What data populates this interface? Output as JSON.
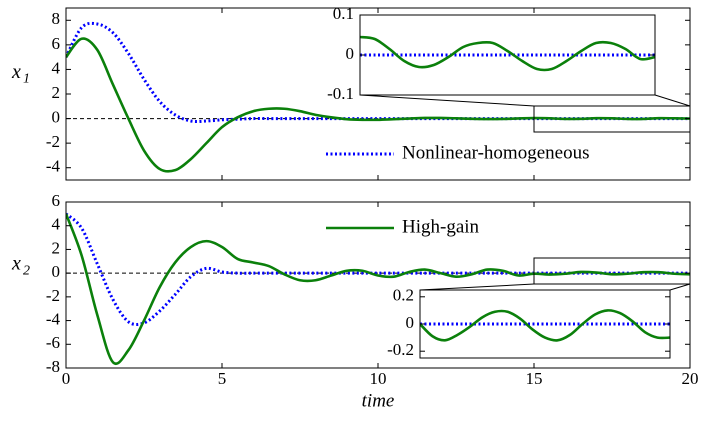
{
  "chart_data": [
    {
      "type": "line",
      "ylabel": "x",
      "ylabel_subscript": "1",
      "x": [
        0,
        0.5,
        1,
        1.5,
        2,
        2.5,
        3,
        3.5,
        4,
        4.5,
        5,
        5.5,
        6,
        6.5,
        7,
        7.5,
        8,
        8.5,
        9,
        9.5,
        10,
        10.5,
        11,
        11.5,
        12,
        12.5,
        13,
        13.5,
        14,
        14.5,
        15,
        15.5,
        16,
        16.5,
        17,
        17.5,
        18,
        18.5,
        19,
        19.5,
        20
      ],
      "xlim": [
        0,
        20
      ],
      "xticks": [
        0,
        5,
        10,
        15,
        20
      ],
      "xtick_labels": false,
      "ylim": [
        -5,
        9
      ],
      "yticks": [
        -4,
        -2,
        0,
        2,
        4,
        6,
        8
      ],
      "hlines": [
        0
      ],
      "legend": "lower center",
      "series": [
        {
          "name": "Nonlinear-homogeneous",
          "color": "#0000ff",
          "style": "dotted",
          "values": [
            5,
            7.4,
            7.7,
            7,
            5.3,
            3.2,
            1.4,
            0.3,
            -0.2,
            -0.2,
            -0.1,
            -0.05,
            0,
            0,
            0,
            0,
            0,
            0,
            0,
            0,
            0,
            0,
            0,
            0,
            0,
            0,
            0,
            0,
            0,
            0,
            0,
            0,
            0,
            0,
            0,
            0,
            0,
            0,
            0,
            0,
            0
          ]
        },
        {
          "color": "#0b800b",
          "style": "solid",
          "values": [
            5,
            6.5,
            5.6,
            2.8,
            0,
            -2.6,
            -4.1,
            -4.2,
            -3.3,
            -2,
            -0.7,
            0.1,
            0.6,
            0.8,
            0.8,
            0.6,
            0.3,
            0.1,
            -0.05,
            -0.1,
            -0.1,
            -0.05,
            0,
            0.05,
            0.05,
            0.02,
            -0.02,
            -0.04,
            -0.03,
            0.01,
            0.04,
            0.02,
            -0.03,
            -0.02,
            0.03,
            0.02,
            -0.03,
            -0.03,
            0.03,
            0.02,
            0
          ]
        }
      ]
    },
    {
      "type": "line",
      "x": [
        15,
        15.25,
        15.5,
        15.75,
        16,
        16.25,
        16.5,
        16.75,
        17,
        17.25,
        17.5,
        17.75,
        18,
        18.25,
        18.5,
        18.75,
        19,
        19.25,
        19.5,
        19.75,
        20
      ],
      "xlim": [
        15,
        20
      ],
      "ylim": [
        -0.1,
        0.1
      ],
      "yticks": [
        -0.1,
        0,
        0.1
      ],
      "series": [
        {
          "color": "#0000ff",
          "style": "dotted",
          "values": [
            0,
            0,
            0,
            0,
            0,
            0,
            0,
            0,
            0,
            0,
            0,
            0,
            0,
            0,
            0,
            0,
            0,
            0,
            0,
            0,
            0
          ]
        },
        {
          "color": "#0b800b",
          "style": "solid",
          "values": [
            0.045,
            0.04,
            0.015,
            -0.015,
            -0.03,
            -0.025,
            -0.005,
            0.02,
            0.03,
            0.03,
            0.01,
            -0.015,
            -0.035,
            -0.035,
            -0.015,
            0.01,
            0.03,
            0.03,
            0.015,
            -0.01,
            -0.005
          ]
        }
      ]
    },
    {
      "type": "line",
      "ylabel": "x",
      "ylabel_subscript": "2",
      "xlabel": "time",
      "x": [
        0,
        0.5,
        1,
        1.5,
        2,
        2.5,
        3,
        3.5,
        4,
        4.5,
        5,
        5.5,
        6,
        6.5,
        7,
        7.5,
        8,
        8.5,
        9,
        9.5,
        10,
        10.5,
        11,
        11.5,
        12,
        12.5,
        13,
        13.5,
        14,
        14.5,
        15,
        15.5,
        16,
        16.5,
        17,
        17.5,
        18,
        18.5,
        19,
        19.5,
        20
      ],
      "xlim": [
        0,
        20
      ],
      "xticks": [
        0,
        5,
        10,
        15,
        20
      ],
      "ylim": [
        -8,
        6
      ],
      "yticks": [
        -8,
        -6,
        -4,
        -2,
        0,
        2,
        4,
        6
      ],
      "hlines": [
        0
      ],
      "legend": "upper center",
      "series": [
        {
          "color": "#0000ff",
          "style": "dotted",
          "values": [
            5,
            3.8,
            0.8,
            -2.2,
            -4.1,
            -4.2,
            -3.2,
            -1.8,
            -0.3,
            0.4,
            0.1,
            0,
            0,
            0,
            0,
            0,
            0,
            0,
            0,
            0,
            0,
            0,
            0,
            0,
            0,
            0,
            0,
            0,
            0,
            0,
            0,
            0,
            0,
            0,
            0,
            0,
            0,
            0,
            0,
            0,
            0
          ]
        },
        {
          "name": "High-gain",
          "color": "#0b800b",
          "style": "solid",
          "values": [
            5,
            1.5,
            -3.5,
            -7.5,
            -6.5,
            -4,
            -1.2,
            0.9,
            2.2,
            2.7,
            2.2,
            1.2,
            0.9,
            0.6,
            -0.1,
            -0.6,
            -0.6,
            -0.2,
            0.2,
            0.2,
            -0.2,
            -0.3,
            0.1,
            0.3,
            0,
            -0.3,
            -0.1,
            0.3,
            0.2,
            -0.2,
            -0.05,
            -0.12,
            -0.05,
            0.1,
            0.05,
            -0.1,
            -0.05,
            0.08,
            0.08,
            -0.05,
            -0.1
          ]
        }
      ]
    },
    {
      "type": "line",
      "x": [
        15,
        15.25,
        15.5,
        15.75,
        16,
        16.25,
        16.5,
        16.75,
        17,
        17.25,
        17.5,
        17.75,
        18,
        18.25,
        18.5,
        18.75,
        19,
        19.25,
        19.5,
        19.75,
        20
      ],
      "xlim": [
        15,
        20
      ],
      "ylim": [
        -0.25,
        0.25
      ],
      "yticks": [
        -0.2,
        0,
        0.2
      ],
      "series": [
        {
          "color": "#0000ff",
          "style": "dotted",
          "values": [
            0,
            0,
            0,
            0,
            0,
            0,
            0,
            0,
            0,
            0,
            0,
            0,
            0,
            0,
            0,
            0,
            0,
            0,
            0,
            0,
            0
          ]
        },
        {
          "color": "#0b800b",
          "style": "solid",
          "values": [
            0,
            -0.09,
            -0.12,
            -0.08,
            -0.02,
            0.05,
            0.09,
            0.09,
            0.04,
            -0.04,
            -0.1,
            -0.12,
            -0.08,
            0,
            0.07,
            0.1,
            0.08,
            0.02,
            -0.06,
            -0.1,
            -0.1
          ]
        }
      ]
    }
  ]
}
